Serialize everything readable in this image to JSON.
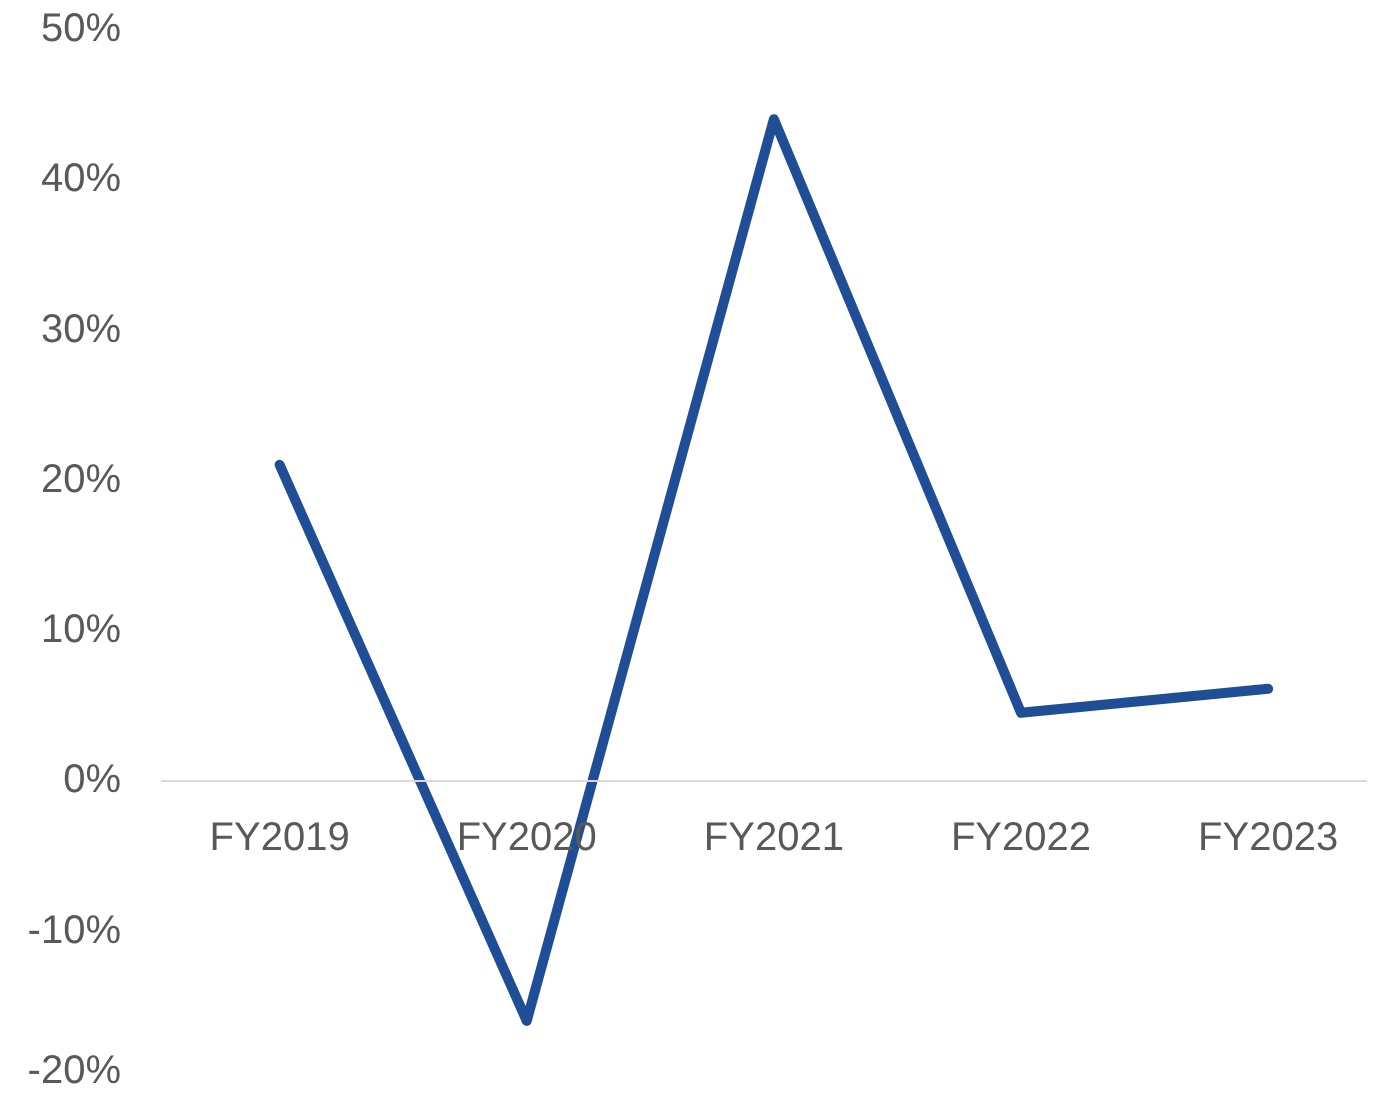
{
  "chart_data": {
    "type": "line",
    "categories": [
      "FY2019",
      "FY2020",
      "FY2021",
      "FY2022",
      "FY2023"
    ],
    "series": [
      {
        "color": "#1f4e96",
        "values": [
          21,
          -16,
          44,
          4.5,
          6.1
        ]
      }
    ],
    "ylim": [
      -20,
      50
    ],
    "yticks": [
      {
        "value": -20,
        "label": "-20%"
      },
      {
        "value": -10,
        "label": "-10%"
      },
      {
        "value": 0,
        "label": "0%"
      },
      {
        "value": 10,
        "label": "10%"
      },
      {
        "value": 20,
        "label": "20%"
      },
      {
        "value": 30,
        "label": "30%"
      },
      {
        "value": 40,
        "label": "40%"
      },
      {
        "value": 50,
        "label": "50%"
      }
    ],
    "grid": false,
    "marker": "none",
    "line_style": "solid"
  }
}
